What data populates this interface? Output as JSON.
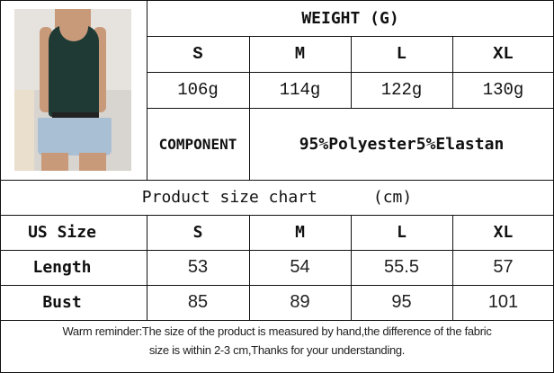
{
  "weight_table": {
    "title": "WEIGHT (G)",
    "sizes": [
      "S",
      "M",
      "L",
      "XL"
    ],
    "weights": [
      "106g",
      "114g",
      "122g",
      "130g"
    ],
    "component_label": "COMPONENT",
    "component_value": "95%Polyester5%Elastan"
  },
  "size_chart": {
    "title": "Product size chart",
    "unit": "(cm)",
    "header": [
      "US Size",
      "S",
      "M",
      "L",
      "XL"
    ],
    "rows": [
      {
        "label": "Length",
        "values": [
          "53",
          "54",
          "55.5",
          "57"
        ]
      },
      {
        "label": "Bust",
        "values": [
          "85",
          "89",
          "95",
          "101"
        ]
      }
    ]
  },
  "reminder_line1": "Warm reminder:The size of the product is measured by hand,the difference of the fabric",
  "reminder_line2": "size is within 2-3 cm,Thanks for your understanding.",
  "colors": {
    "garment": "#1f3a35",
    "denim": "#a9bfd3"
  }
}
